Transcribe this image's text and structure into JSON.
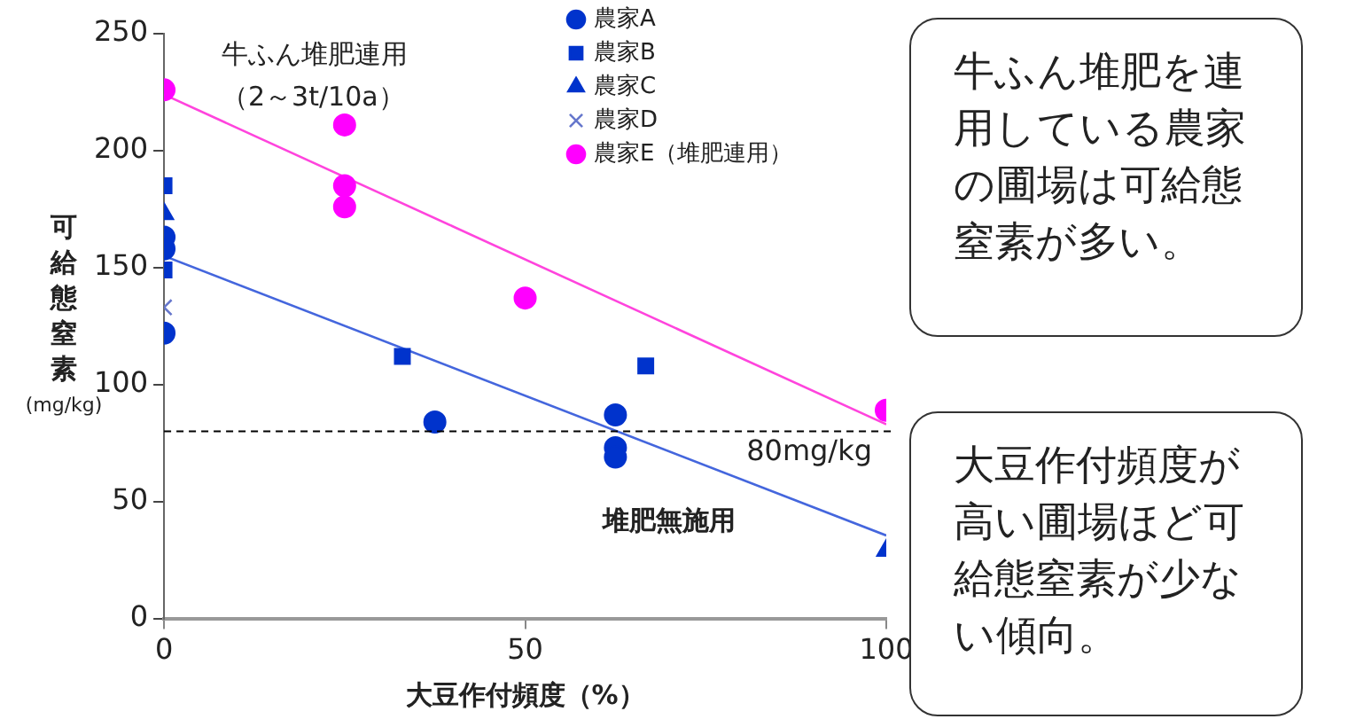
{
  "chart_data": {
    "type": "scatter",
    "xlabel": "大豆作付頻度（%）",
    "ylabel": "可給態窒素(mg/kg)",
    "xlim": [
      0,
      100
    ],
    "xticks": [
      0,
      50,
      100
    ],
    "ylim": [
      0,
      250
    ],
    "yticks": [
      0,
      50,
      100,
      150,
      200,
      250
    ],
    "grid": false,
    "legend": "top right",
    "series": [
      {
        "name": "農家A",
        "color": "#0033cc",
        "marker": "circle",
        "x": [
          0,
          0,
          0,
          37.5,
          62.5,
          62.5,
          62.5
        ],
        "values": [
          163,
          158,
          122,
          84,
          87,
          73,
          69
        ]
      },
      {
        "name": "農家B",
        "color": "#0033cc",
        "marker": "square",
        "x": [
          0,
          0,
          33,
          66.7
        ],
        "values": [
          185,
          149,
          112,
          108
        ]
      },
      {
        "name": "農家C",
        "color": "#0033cc",
        "marker": "triangle",
        "x": [
          0,
          100
        ],
        "values": [
          173,
          29
        ]
      },
      {
        "name": "農家D",
        "color": "#6677cc",
        "marker": "cross",
        "x": [
          0
        ],
        "values": [
          133
        ]
      },
      {
        "name": "農家E（堆肥連用）",
        "color": "#ff00ff",
        "marker": "circle",
        "x": [
          0,
          25,
          25,
          25,
          50,
          100
        ],
        "values": [
          226,
          211,
          185,
          176,
          137,
          89
        ]
      },
      {
        "type": "line",
        "color": "#ff44dd",
        "marker": "none",
        "x": [
          0,
          100
        ],
        "values": [
          224,
          83
        ]
      },
      {
        "type": "line",
        "color": "#4466dd",
        "marker": "none",
        "x": [
          0,
          100
        ],
        "values": [
          155,
          35.5
        ]
      }
    ],
    "ref_lines": [
      {
        "axis": "y",
        "value": 80,
        "label": "80mg/kg",
        "color": "#000000",
        "line_style": "dashed"
      }
    ],
    "annotations": [
      "牛ふん堆肥連用",
      "（2～3t/10a）",
      "堆肥無施用",
      "牛ふん堆肥を連用している農家の圃場は可給態窒素が多い。",
      "大豆作付頻度が高い圃場ほど可給態窒素が少ない傾向。"
    ]
  }
}
